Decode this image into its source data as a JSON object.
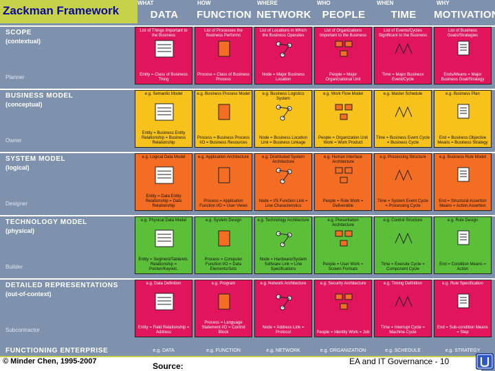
{
  "title": "Zackman Framework",
  "columns": [
    {
      "question": "WHAT",
      "name": "DATA"
    },
    {
      "question": "HOW",
      "name": "FUNCTION"
    },
    {
      "question": "WHERE",
      "name": "NETWORK"
    },
    {
      "question": "WHO",
      "name": "PEOPLE"
    },
    {
      "question": "WHEN",
      "name": "TIME"
    },
    {
      "question": "WHY",
      "name": "MOTIVATION"
    }
  ],
  "rows": [
    {
      "label": "SCOPE",
      "sub": "(contextual)",
      "perspective": "Planner",
      "color": "#e0155c",
      "cells": [
        {
          "cap": "List of Things Important to the Business",
          "foot": "Entity = Class of Business Thing"
        },
        {
          "cap": "List of Processes the Business Performs",
          "foot": "Process = Class of Business Process"
        },
        {
          "cap": "List of Locations in Which the Business Operates",
          "foot": "Node = Major Business Location"
        },
        {
          "cap": "List of Organizations Important to the Business",
          "foot": "People = Major Organizational Unit"
        },
        {
          "cap": "List of Events/Cycles Significant to the Business",
          "foot": "Time = Major Business Event/Cycle"
        },
        {
          "cap": "List of Business Goals/Strategies",
          "foot": "Ends/Means = Major Business Goal/Strategy"
        }
      ]
    },
    {
      "label": "BUSINESS MODEL",
      "sub": "(conceptual)",
      "perspective": "Owner",
      "color": "#f7c21c",
      "cells": [
        {
          "cap": "e.g. Semantic Model",
          "foot": "Entity = Business Entity Relationship = Business Relationship"
        },
        {
          "cap": "e.g. Business Process Model",
          "foot": "Process = Business Process I/O = Business Resources"
        },
        {
          "cap": "e.g. Business Logistics System",
          "foot": "Node = Business Location Link = Business Linkage"
        },
        {
          "cap": "e.g. Work Flow Model",
          "foot": "People = Organization Unit Work = Work Product"
        },
        {
          "cap": "e.g. Master Schedule",
          "foot": "Time = Business Event Cycle = Business Cycle"
        },
        {
          "cap": "e.g. Business Plan",
          "foot": "End = Business Objective Means = Business Strategy"
        }
      ]
    },
    {
      "label": "SYSTEM MODEL",
      "sub": "(logical)",
      "perspective": "Designer",
      "color": "#f36d22",
      "cells": [
        {
          "cap": "e.g. Logical Data Model",
          "foot": "Entity = Data Entity Relationship = Data Relationship"
        },
        {
          "cap": "e.g. Application Architecture",
          "foot": "Process = Application Function I/O = User Views"
        },
        {
          "cap": "e.g. Distributed System Architecture",
          "foot": "Node = I/S Function Link = Line Characteristics"
        },
        {
          "cap": "e.g. Human Interface Architecture",
          "foot": "People = Role Work = Deliverable"
        },
        {
          "cap": "e.g. Processing Structure",
          "foot": "Time = System Event Cycle = Processing Cycle"
        },
        {
          "cap": "e.g. Business Rule Model",
          "foot": "End = Structural Assertion Means = Action Assertion"
        }
      ]
    },
    {
      "label": "TECHNOLOGY MODEL",
      "sub": "(physical)",
      "perspective": "Builder",
      "color": "#5bbf3a",
      "cells": [
        {
          "cap": "e.g. Physical Data Model",
          "foot": "Entity = Segment/Table/etc. Relationship = Pointer/Key/etc."
        },
        {
          "cap": "e.g. System Design",
          "foot": "Process = Computer Function I/O = Data Elements/Sets"
        },
        {
          "cap": "e.g. Technology Architecture",
          "foot": "Node = Hardware/System Software Link = Line Specifications"
        },
        {
          "cap": "e.g. Presentation Architecture",
          "foot": "People = User Work = Screen Formats"
        },
        {
          "cap": "e.g. Control Structure",
          "foot": "Time = Execute Cycle = Component Cycle"
        },
        {
          "cap": "e.g. Rule Design",
          "foot": "End = Condition Means = Action"
        }
      ]
    },
    {
      "label": "DETAILED REPRESENTATIONS",
      "sub": "(out-of-context)",
      "perspective": "Subcontractor",
      "color": "#e0155c",
      "cells": [
        {
          "cap": "e.g. Data Definition",
          "foot": "Entity = Field Relationship = Address"
        },
        {
          "cap": "e.g. Program",
          "foot": "Process = Language Statement I/O = Control Block"
        },
        {
          "cap": "e.g. Network Architecture",
          "foot": "Node = Address Link = Protocol"
        },
        {
          "cap": "e.g. Security Architecture",
          "foot": "People = Identity Work = Job"
        },
        {
          "cap": "e.g. Timing Definition",
          "foot": "Time = Interrupt Cycle = Machine Cycle"
        },
        {
          "cap": "e.g. Rule Specification",
          "foot": "End = Sub-condition Means = Step"
        }
      ]
    }
  ],
  "bottom": {
    "label": "FUNCTIONING ENTERPRISE",
    "cells": [
      "e.g. DATA",
      "e.g. FUNCTION",
      "e.g. NETWORK",
      "e.g. ORGANIZATION",
      "e.g. SCHEDULE",
      "e.g. STRATEGY"
    ]
  },
  "footer": {
    "copyright": "© Minder Chen, 1995-2007",
    "source": "Source:",
    "course": "EA and IT Governance - 10"
  }
}
